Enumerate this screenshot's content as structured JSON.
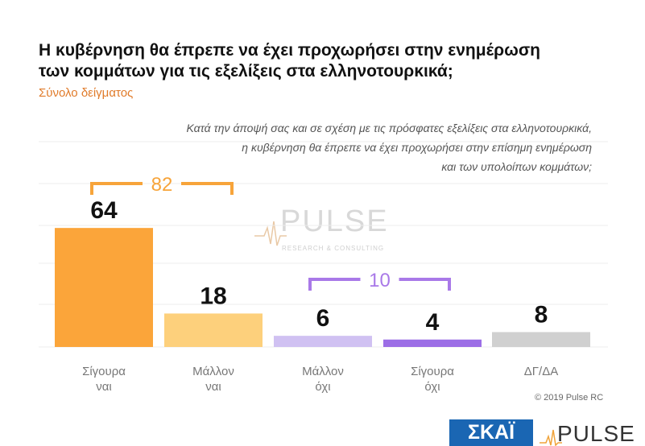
{
  "title_lines": [
    "Η κυβέρνηση θα έπρεπε να έχει προχωρήσει στην  ενημέρωση",
    "των κομμάτων για τις εξελίξεις στα ελληνοτουρκικά;"
  ],
  "subtitle": "Σύνολο δείγματος",
  "question_lines": [
    "Κατά την άποψή σας και σε σχέση με τις πρόσφατες εξελίξεις στα ελληνοτουρκικά,",
    "η κυβέρνηση θα έπρεπε να έχει προχωρήσει στην επίσημη ενημέρωση",
    "και των υπολοίπων κομμάτων;"
  ],
  "chart_data": {
    "type": "bar",
    "categories": [
      [
        "Σίγουρα",
        "ναι"
      ],
      [
        "Μάλλον",
        "ναι"
      ],
      [
        "Μάλλον",
        "όχι"
      ],
      [
        "Σίγουρα",
        "όχι"
      ],
      [
        "ΔΓ/ΔΑ"
      ]
    ],
    "values": [
      64,
      18,
      6,
      4,
      8
    ],
    "colors": [
      "#fba53a",
      "#fdd07c",
      "#d0c1f2",
      "#9c6ee6",
      "#d0d0d0"
    ],
    "ylim": [
      0,
      100
    ],
    "brackets": [
      {
        "label": "82",
        "from": 0,
        "to": 1,
        "color": "#f7a43a"
      },
      {
        "label": "10",
        "from": 2,
        "to": 3,
        "color": "#a979e8"
      }
    ]
  },
  "watermark": {
    "brand": "PULSE",
    "tagline": "RESEARCH & CONSULTING"
  },
  "copyright": "© 2019 Pulse RC",
  "footer": {
    "skai": "ΣΚΑΪ",
    "pulse": "PULSE"
  }
}
